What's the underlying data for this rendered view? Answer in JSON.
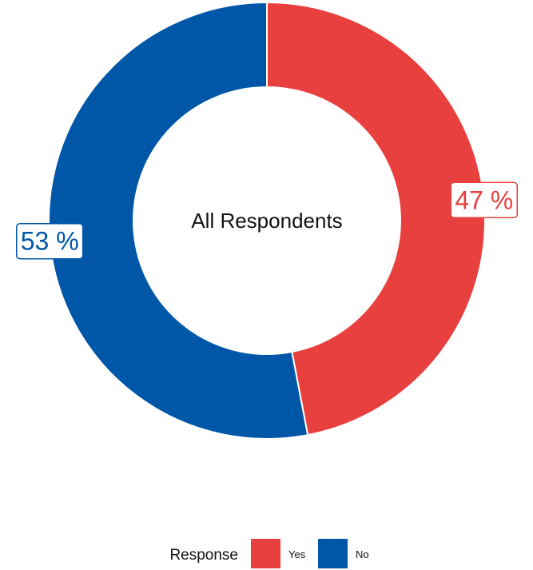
{
  "chart_data": {
    "type": "pie",
    "donut": true,
    "center_label": "All Respondents",
    "legend": {
      "title": "Response",
      "position": "bottom"
    },
    "slices": [
      {
        "name": "Yes",
        "value": 47,
        "label": "47 %",
        "color": "#E8403F"
      },
      {
        "name": "No",
        "value": 53,
        "label": "53 %",
        "color": "#0057A8"
      }
    ]
  }
}
